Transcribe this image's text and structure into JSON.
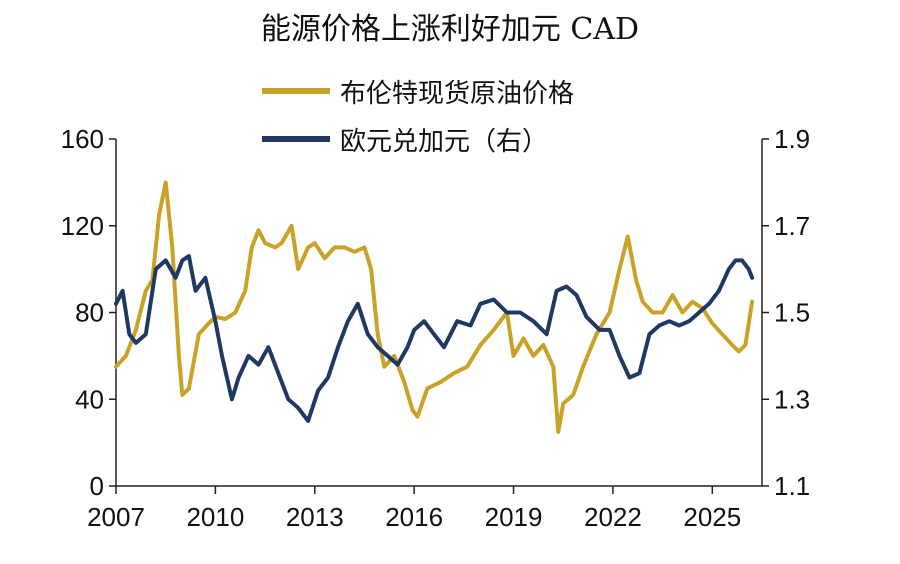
{
  "chart_data": {
    "type": "line",
    "title": "能源价格上涨利好加元 CAD",
    "x_ticks": [
      "2007",
      "2010",
      "2013",
      "2016",
      "2019",
      "2022",
      "2025"
    ],
    "xlim": [
      2007,
      2026.5
    ],
    "y_left": {
      "ticks": [
        "0",
        "40",
        "80",
        "120",
        "160"
      ],
      "ylim": [
        0,
        160
      ]
    },
    "y_right": {
      "ticks": [
        "1.1",
        "1.3",
        "1.5",
        "1.7",
        "1.9"
      ],
      "ylim": [
        1.1,
        1.9
      ]
    },
    "legend_position": "top-center",
    "series": [
      {
        "name": "布伦特现货原油价格",
        "axis": "left",
        "color": "#C9A227",
        "x": [
          2007.0,
          2007.3,
          2007.6,
          2007.9,
          2008.1,
          2008.3,
          2008.5,
          2008.7,
          2008.9,
          2009.0,
          2009.2,
          2009.5,
          2009.8,
          2010.0,
          2010.3,
          2010.6,
          2010.9,
          2011.1,
          2011.3,
          2011.5,
          2011.8,
          2012.0,
          2012.3,
          2012.5,
          2012.8,
          2013.0,
          2013.3,
          2013.6,
          2013.9,
          2014.2,
          2014.5,
          2014.7,
          2014.9,
          2015.1,
          2015.4,
          2015.7,
          2015.95,
          2016.1,
          2016.4,
          2016.8,
          2017.2,
          2017.6,
          2018.0,
          2018.4,
          2018.8,
          2019.0,
          2019.3,
          2019.6,
          2019.9,
          2020.2,
          2020.35,
          2020.5,
          2020.8,
          2021.1,
          2021.5,
          2021.9,
          2022.2,
          2022.45,
          2022.7,
          2022.9,
          2023.2,
          2023.5,
          2023.8,
          2024.1,
          2024.4,
          2024.7,
          2025.0,
          2025.3,
          2025.6,
          2025.8,
          2026.0,
          2026.2
        ],
        "values": [
          55,
          60,
          72,
          90,
          95,
          125,
          140,
          110,
          60,
          42,
          45,
          70,
          75,
          78,
          77,
          80,
          90,
          110,
          118,
          112,
          110,
          112,
          120,
          100,
          110,
          112,
          105,
          110,
          110,
          108,
          110,
          100,
          70,
          55,
          60,
          48,
          35,
          32,
          45,
          48,
          52,
          55,
          65,
          72,
          80,
          60,
          68,
          60,
          65,
          55,
          25,
          38,
          42,
          55,
          70,
          80,
          100,
          115,
          95,
          85,
          80,
          80,
          88,
          80,
          85,
          82,
          75,
          70,
          65,
          62,
          65,
          85
        ]
      },
      {
        "name": "欧元兑加元（右）",
        "axis": "right",
        "color": "#1F3864",
        "x": [
          2007.0,
          2007.2,
          2007.4,
          2007.6,
          2007.9,
          2008.2,
          2008.5,
          2008.8,
          2009.0,
          2009.2,
          2009.4,
          2009.7,
          2010.0,
          2010.2,
          2010.5,
          2010.7,
          2011.0,
          2011.3,
          2011.6,
          2011.9,
          2012.2,
          2012.5,
          2012.8,
          2013.1,
          2013.4,
          2013.7,
          2014.0,
          2014.3,
          2014.6,
          2014.9,
          2015.2,
          2015.5,
          2015.8,
          2016.0,
          2016.3,
          2016.6,
          2016.9,
          2017.3,
          2017.7,
          2018.0,
          2018.4,
          2018.8,
          2019.2,
          2019.6,
          2020.0,
          2020.3,
          2020.6,
          2020.9,
          2021.2,
          2021.6,
          2021.9,
          2022.2,
          2022.5,
          2022.8,
          2023.1,
          2023.4,
          2023.7,
          2024.0,
          2024.3,
          2024.6,
          2024.9,
          2025.2,
          2025.5,
          2025.7,
          2025.9,
          2026.1,
          2026.2
        ],
        "values": [
          1.52,
          1.55,
          1.45,
          1.43,
          1.45,
          1.6,
          1.62,
          1.58,
          1.62,
          1.63,
          1.55,
          1.58,
          1.48,
          1.4,
          1.3,
          1.35,
          1.4,
          1.38,
          1.42,
          1.36,
          1.3,
          1.28,
          1.25,
          1.32,
          1.35,
          1.42,
          1.48,
          1.52,
          1.45,
          1.42,
          1.4,
          1.38,
          1.42,
          1.46,
          1.48,
          1.45,
          1.42,
          1.48,
          1.47,
          1.52,
          1.53,
          1.5,
          1.5,
          1.48,
          1.45,
          1.55,
          1.56,
          1.54,
          1.49,
          1.46,
          1.46,
          1.4,
          1.35,
          1.36,
          1.45,
          1.47,
          1.48,
          1.47,
          1.48,
          1.5,
          1.52,
          1.55,
          1.6,
          1.62,
          1.62,
          1.6,
          1.58
        ]
      }
    ]
  }
}
